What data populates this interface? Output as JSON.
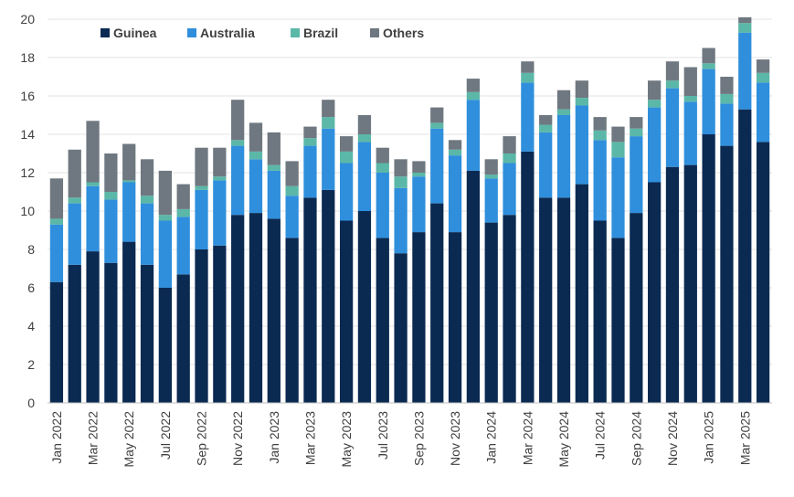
{
  "chart_data": {
    "type": "bar",
    "stacked": true,
    "title": "",
    "xlabel": "",
    "ylabel": "",
    "ylim": [
      0,
      20
    ],
    "yticks": [
      0,
      2,
      4,
      6,
      8,
      10,
      12,
      14,
      16,
      18,
      20
    ],
    "grid": "horizontal",
    "legend_position": "top-left",
    "categories": [
      "Jan 2022",
      "Feb 2022",
      "Mar 2022",
      "Apr 2022",
      "May 2022",
      "Jun 2022",
      "Jul 2022",
      "Aug 2022",
      "Sep 2022",
      "Oct 2022",
      "Nov 2022",
      "Dec 2022",
      "Jan 2023",
      "Feb 2023",
      "Mar 2023",
      "Apr 2023",
      "May 2023",
      "Jun 2023",
      "Jul 2023",
      "Aug 2023",
      "Sep 2023",
      "Oct 2023",
      "Nov 2023",
      "Dec 2023",
      "Jan 2024",
      "Feb 2024",
      "Mar 2024",
      "Apr 2024",
      "May 2024",
      "Jun 2024",
      "Jul 2024",
      "Aug 2024",
      "Sep 2024",
      "Oct 2024",
      "Nov 2024",
      "Dec 2024",
      "Jan 2025",
      "Feb 2025",
      "Mar 2025",
      "Apr 2025"
    ],
    "tick_labels": [
      "Jan 2022",
      "",
      "Mar 2022",
      "",
      "May 2022",
      "",
      "Jul 2022",
      "",
      "Sep 2022",
      "",
      "Nov 2022",
      "",
      "Jan 2023",
      "",
      "Mar 2023",
      "",
      "May 2023",
      "",
      "Jul 2023",
      "",
      "Sep 2023",
      "",
      "Nov 2023",
      "",
      "Jan 2024",
      "",
      "Mar 2024",
      "",
      "May 2024",
      "",
      "Jul 2024",
      "",
      "Sep 2024",
      "",
      "Nov 2024",
      "",
      "Jan 2025",
      "",
      "Mar 2025",
      ""
    ],
    "series": [
      {
        "name": "Guinea",
        "color": "#0b2a52",
        "values": [
          6.3,
          7.2,
          7.9,
          7.3,
          8.4,
          7.2,
          6.0,
          6.7,
          8.0,
          8.2,
          9.8,
          9.9,
          9.6,
          8.6,
          10.7,
          11.1,
          9.5,
          10.0,
          8.6,
          7.8,
          8.9,
          10.4,
          8.9,
          12.1,
          9.4,
          9.8,
          13.1,
          10.7,
          10.7,
          11.4,
          9.5,
          8.6,
          9.9,
          11.5,
          12.3,
          12.4,
          14.0,
          13.4,
          15.3,
          13.6
        ]
      },
      {
        "name": "Australia",
        "color": "#2f8fdc",
        "values": [
          3.0,
          3.2,
          3.4,
          3.3,
          3.1,
          3.2,
          3.5,
          3.0,
          3.1,
          3.4,
          3.6,
          2.8,
          2.5,
          2.2,
          2.7,
          3.2,
          3.0,
          3.6,
          3.4,
          3.4,
          2.9,
          3.9,
          4.0,
          3.7,
          2.3,
          2.7,
          3.6,
          3.4,
          4.3,
          4.1,
          4.2,
          4.2,
          4.0,
          3.9,
          4.1,
          3.3,
          3.4,
          2.2,
          4.0,
          3.1
        ]
      },
      {
        "name": "Brazil",
        "color": "#5bb7a8",
        "values": [
          0.3,
          0.3,
          0.2,
          0.4,
          0.1,
          0.4,
          0.3,
          0.4,
          0.2,
          0.2,
          0.3,
          0.4,
          0.3,
          0.5,
          0.4,
          0.6,
          0.6,
          0.4,
          0.5,
          0.6,
          0.2,
          0.3,
          0.3,
          0.4,
          0.2,
          0.5,
          0.5,
          0.4,
          0.3,
          0.4,
          0.5,
          0.8,
          0.4,
          0.4,
          0.4,
          0.3,
          0.3,
          0.5,
          0.5,
          0.5
        ]
      },
      {
        "name": "Others",
        "color": "#6f7880",
        "values": [
          2.1,
          2.5,
          3.2,
          2.0,
          1.9,
          1.9,
          2.3,
          1.3,
          2.0,
          1.5,
          2.1,
          1.5,
          1.7,
          1.3,
          0.6,
          0.9,
          0.8,
          1.0,
          0.8,
          0.9,
          0.6,
          0.8,
          0.5,
          0.7,
          0.8,
          0.9,
          0.6,
          0.5,
          1.0,
          0.9,
          0.7,
          0.8,
          0.6,
          1.0,
          1.0,
          1.5,
          0.8,
          0.9,
          0.3,
          0.7
        ]
      }
    ]
  }
}
